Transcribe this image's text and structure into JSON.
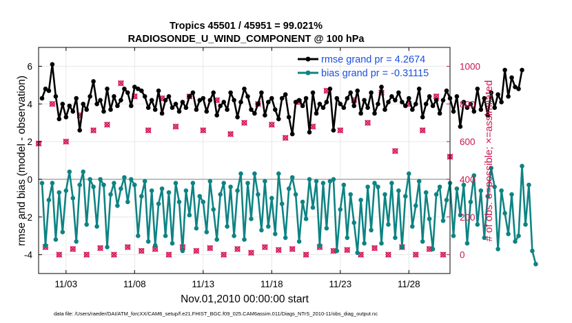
{
  "chart_data": {
    "type": "line",
    "title": "Tropics 45501 / 45951 = 99.021%",
    "subtitle": "RADIOSONDE_U_WIND_COMPONENT @ 100 hPa",
    "xlabel": "Nov.01,2010 00:00:00 start",
    "ylabel": "rmse and bias (model - observation)",
    "ylabel_right": "# of obs: o=possible; ×=assimilated",
    "footnote": "data file: /Users/raeder/DAI/ATM_forcXX/CAM6_setup/f.e21.FHIST_BGC.f09_025.CAM6assim.011/Diags_NTrS_2010-11/obs_diag_output.nc",
    "xlim": [
      1.0,
      31.0
    ],
    "ylim": [
      -5,
      7
    ],
    "ylim_right": [
      -100,
      1100
    ],
    "x_ticks": [
      3,
      8,
      13,
      18,
      23,
      28
    ],
    "x_tick_labels": [
      "11/03",
      "11/08",
      "11/13",
      "11/18",
      "11/23",
      "11/28"
    ],
    "y_ticks": [
      -4,
      -2,
      0,
      2,
      4,
      6
    ],
    "y_tick_labels": [
      "-4",
      "-2",
      "0",
      "2",
      "4",
      "6"
    ],
    "y_ticks_right": [
      0,
      200,
      400,
      600,
      800,
      1000
    ],
    "y_tick_labels_right": [
      "0",
      "200",
      "400",
      "600",
      "800",
      "1000"
    ],
    "grid": true,
    "legend_position": "top-right",
    "colors": {
      "rmse": "#000000",
      "bias": "#0e8383",
      "obs": "#d6195a",
      "right_axis": "#c8174e",
      "legend_text": "#1a4fe0",
      "zero_line": "#a9a9a9",
      "grid": "#e6e6e6"
    },
    "x_start": 1.25,
    "x_step": 0.25,
    "series": [
      {
        "name": "rmse grand pr = 4.2674",
        "axis": "left",
        "values": [
          4.3,
          4.8,
          4.7,
          6.1,
          4.4,
          3.2,
          4.0,
          3.3,
          3.9,
          3.6,
          4.3,
          2.6,
          4.0,
          3.7,
          4.4,
          5.2,
          4.0,
          4.2,
          3.6,
          4.8,
          3.7,
          4.4,
          3.9,
          4.2,
          4.8,
          4.6,
          3.9,
          4.9,
          4.8,
          4.7,
          4.4,
          3.8,
          4.2,
          3.7,
          4.7,
          3.5,
          4.2,
          4.4,
          3.8,
          4.0,
          3.6,
          4.1,
          3.8,
          4.4,
          4.6,
          3.7,
          4.2,
          4.3,
          3.6,
          4.2,
          4.6,
          3.4,
          3.9,
          4.1,
          3.7,
          4.6,
          4.2,
          3.3,
          4.1,
          4.8,
          4.4,
          3.7,
          3.5,
          4.0,
          4.6,
          3.4,
          4.1,
          4.3,
          3.7,
          3.2,
          4.3,
          4.5,
          3.3,
          2.4,
          4.1,
          4.2,
          3.9,
          4.3,
          2.5,
          4.6,
          3.5,
          4.0,
          3.8,
          4.1,
          4.8,
          2.6,
          4.3,
          4.0,
          3.8,
          4.3,
          4.6,
          3.9,
          4.7,
          3.5,
          4.2,
          3.8,
          4.6,
          3.5,
          4.0,
          4.9,
          3.7,
          4.1,
          4.4,
          4.2,
          4.6,
          4.1,
          3.9,
          4.3,
          3.7,
          4.0,
          4.8,
          3.3,
          4.0,
          4.4,
          3.9,
          4.2,
          3.5,
          4.2,
          4.7,
          4.3,
          3.6,
          4.4,
          2.8,
          4.1,
          3.8,
          4.0,
          3.6,
          4.8,
          3.7,
          4.3,
          3.4,
          4.6,
          3.8,
          4.5,
          4.1,
          5.8,
          4.4,
          5.4,
          4.9,
          4.8,
          5.8
        ]
      },
      {
        "name": "bias grand pr = -0.31115",
        "axis": "left",
        "values": [
          -0.2,
          -3.5,
          -1.1,
          -0.2,
          -3.2,
          -0.7,
          -2.8,
          -0.6,
          0.4,
          -1.0,
          -3.3,
          -0.3,
          0.4,
          -2.4,
          0.0,
          -0.4,
          -2.5,
          0.0,
          -0.3,
          -3.6,
          -0.8,
          -0.2,
          -1.4,
          -0.5,
          0.1,
          -1.2,
          0.0,
          -0.3,
          -3.0,
          -0.9,
          -0.1,
          -3.3,
          -0.6,
          -3.5,
          -1.3,
          -0.5,
          -3.0,
          -0.7,
          -3.4,
          -0.2,
          -1.2,
          -3.8,
          -0.6,
          -1.9,
          -0.2,
          -2.6,
          -0.9,
          -1.2,
          -2.8,
          -0.1,
          -1.6,
          -3.2,
          -0.8,
          -0.2,
          -2.5,
          -0.4,
          -3.0,
          -0.6,
          0.3,
          -3.2,
          -0.2,
          -2.1,
          0.3,
          -0.8,
          -2.7,
          -0.1,
          -2.5,
          -1.0,
          -2.9,
          0.3,
          -1.3,
          -3.1,
          -0.5,
          0.1,
          -0.8,
          -3.3,
          -1.2,
          -2.1,
          0.0,
          -1.5,
          -0.1,
          -3.5,
          -0.2,
          -2.6,
          -0.1,
          0.0,
          -3.8,
          -1.6,
          -0.3,
          -3.1,
          -0.8,
          -2.3,
          -3.9,
          -1.1,
          -3.4,
          -0.4,
          -2.7,
          -0.2,
          -0.4,
          -3.4,
          -0.8,
          -2.4,
          -0.2,
          -3.1,
          -0.6,
          -3.6,
          -0.9,
          0.3,
          -2.5,
          -1.4,
          -0.1,
          -3.3,
          -0.7,
          -2.1,
          -3.7,
          -0.8,
          -0.4,
          -2.2,
          -1.1,
          -0.2,
          -3.0,
          -0.5,
          -1.9,
          -0.3,
          -3.4,
          -1.2,
          0.2,
          -2.4,
          -0.6,
          -3.1,
          -0.9,
          0.6,
          -0.4,
          -3.7,
          -0.6,
          -1.8,
          -2.9,
          -0.8,
          -3.3,
          -3.0,
          0.7,
          -2.4,
          -0.3,
          -3.8,
          -4.5
        ]
      },
      {
        "name": "# of obs (possible / assimilated)",
        "axis": "right",
        "marker": "o and ×",
        "x": [
          1.0,
          1.5,
          2.0,
          2.5,
          3.0,
          3.5,
          4.0,
          4.5,
          5.0,
          5.5,
          6.0,
          6.5,
          7.0,
          7.5,
          8.0,
          8.5,
          9.0,
          9.5,
          10.0,
          10.5,
          11.0,
          11.5,
          12.0,
          12.5,
          13.0,
          13.5,
          14.0,
          14.5,
          15.0,
          15.5,
          16.0,
          16.5,
          17.0,
          17.5,
          18.0,
          18.5,
          19.0,
          19.5,
          20.0,
          20.5,
          21.0,
          21.5,
          22.0,
          22.5,
          23.0,
          23.5,
          24.0,
          24.5,
          25.0,
          25.5,
          26.0,
          26.5,
          27.0,
          27.5,
          28.0,
          28.5,
          29.0,
          29.5,
          30.0,
          30.5,
          31.0
        ],
        "values": [
          590,
          40,
          800,
          0,
          600,
          30,
          740,
          0,
          660,
          35,
          690,
          0,
          910,
          40,
          840,
          20,
          660,
          30,
          830,
          0,
          680,
          40,
          840,
          20,
          660,
          35,
          820,
          0,
          640,
          30,
          700,
          10,
          800,
          40,
          690,
          25,
          620,
          30,
          810,
          0,
          680,
          40,
          870,
          20,
          660,
          25,
          820,
          0,
          700,
          35,
          860,
          0,
          550,
          40,
          800,
          0,
          660,
          30,
          840,
          0,
          520
        ]
      }
    ]
  }
}
